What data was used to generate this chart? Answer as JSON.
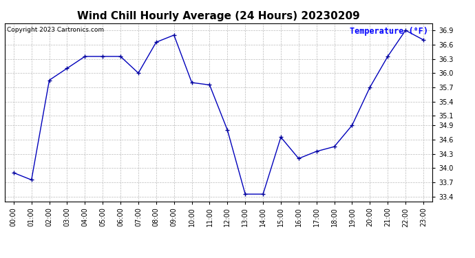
{
  "title": "Wind Chill Hourly Average (24 Hours) 20230209",
  "copyright_text": "Copyright 2023 Cartronics.com",
  "legend_label": "Temperature (°F)",
  "hours": [
    "00:00",
    "01:00",
    "02:00",
    "03:00",
    "04:00",
    "05:00",
    "06:00",
    "07:00",
    "08:00",
    "09:00",
    "10:00",
    "11:00",
    "12:00",
    "13:00",
    "14:00",
    "15:00",
    "16:00",
    "17:00",
    "18:00",
    "19:00",
    "20:00",
    "21:00",
    "22:00",
    "23:00"
  ],
  "values": [
    33.9,
    33.75,
    35.85,
    36.1,
    36.35,
    36.35,
    36.35,
    36.0,
    36.65,
    36.8,
    35.8,
    35.75,
    34.8,
    33.45,
    33.45,
    34.65,
    34.2,
    34.35,
    34.45,
    34.9,
    35.7,
    36.35,
    36.9,
    36.7
  ],
  "ylim": [
    33.3,
    37.05
  ],
  "yticks": [
    33.4,
    33.7,
    34.0,
    34.3,
    34.6,
    34.9,
    35.1,
    35.4,
    35.7,
    36.0,
    36.3,
    36.6,
    36.9
  ],
  "line_color": "#0000bb",
  "marker": "+",
  "marker_color": "#000099",
  "title_fontsize": 11,
  "legend_color": "#0000ff",
  "copyright_color": "#000000",
  "bg_color": "#ffffff",
  "grid_color": "#aaaaaa",
  "grid_linestyle": "--",
  "tick_fontsize": 7,
  "ytick_fontsize": 7
}
